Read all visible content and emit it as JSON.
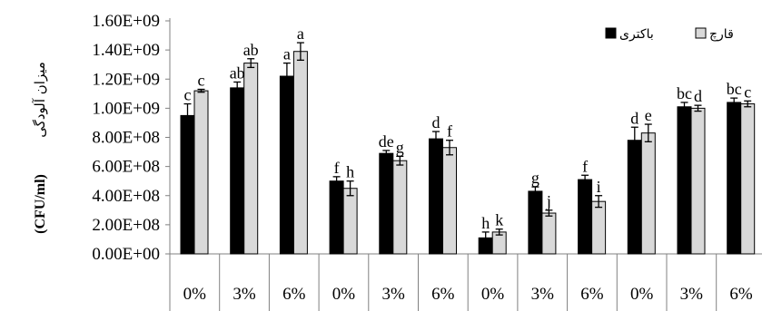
{
  "chart_data": {
    "type": "bar",
    "ylabel_text": "میزان آلودگی",
    "ylabel_unit": "(CFU/ml)",
    "ylim": [
      0,
      1600000000
    ],
    "yticks": [
      "0.00E+00",
      "2.00E+08",
      "4.00E+08",
      "6.00E+08",
      "8.00E+08",
      "1.00E+09",
      "1.20E+09",
      "1.40E+09",
      "1.60E+09"
    ],
    "categories": [
      "0%",
      "3%",
      "6%",
      "0%",
      "3%",
      "6%",
      "0%",
      "3%",
      "6%",
      "0%",
      "3%",
      "6%"
    ],
    "legend_position": "top-right",
    "series": [
      {
        "name": "باکتری",
        "color": "#000000",
        "values": [
          950000000,
          1140000000,
          1220000000,
          500000000,
          690000000,
          790000000,
          110000000,
          430000000,
          510000000,
          780000000,
          1010000000,
          1040000000
        ],
        "errors": [
          80000000,
          40000000,
          90000000,
          30000000,
          20000000,
          50000000,
          40000000,
          30000000,
          30000000,
          90000000,
          30000000,
          30000000
        ],
        "labels": [
          "c",
          "ab",
          "a",
          "f",
          "de",
          "d",
          "h",
          "g",
          "f",
          "d",
          "bc",
          "bc"
        ]
      },
      {
        "name": "قارچ",
        "color": "#d9d9d9",
        "values": [
          1120000000,
          1310000000,
          1390000000,
          450000000,
          640000000,
          730000000,
          150000000,
          280000000,
          360000000,
          830000000,
          1000000000,
          1030000000
        ],
        "errors": [
          10000000,
          30000000,
          60000000,
          50000000,
          30000000,
          50000000,
          20000000,
          20000000,
          40000000,
          60000000,
          20000000,
          20000000
        ],
        "labels": [
          "c",
          "ab",
          "a",
          "h",
          "g",
          "f",
          "k",
          "j",
          "i",
          "e",
          "d",
          "c"
        ]
      }
    ]
  }
}
